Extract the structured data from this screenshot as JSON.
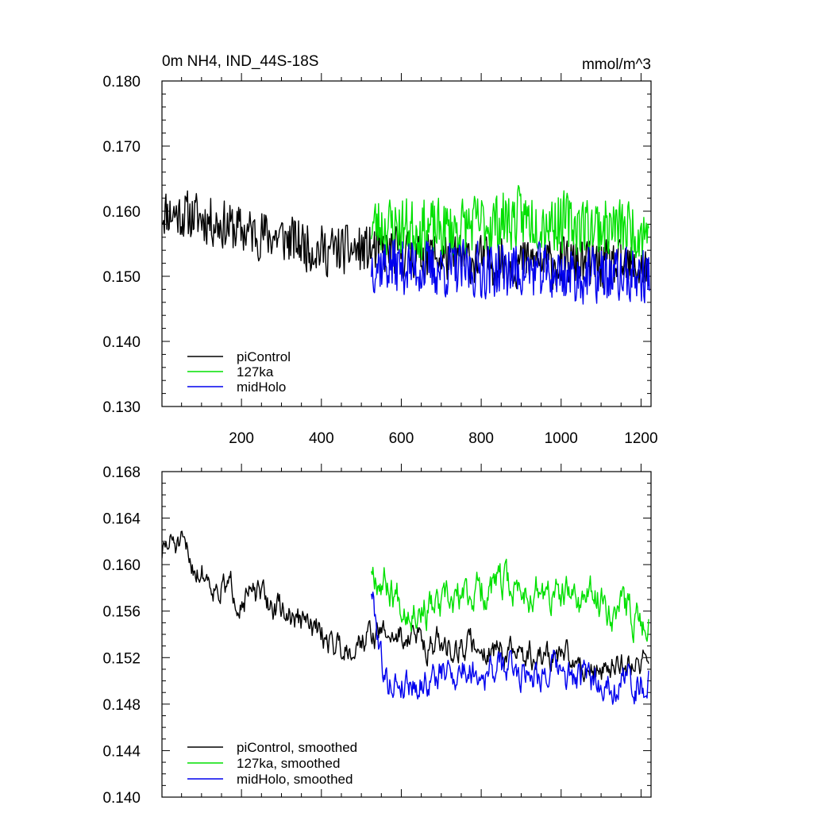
{
  "chart_data": [
    {
      "type": "line",
      "title_left": "0m NH4, IND_44S-18S",
      "title_right": "mmol/m^3",
      "xlim": [
        1,
        1225
      ],
      "ylim": [
        0.13,
        0.18
      ],
      "x_ticks": [
        200,
        400,
        600,
        800,
        1000,
        1200
      ],
      "x_tick_labels": [
        "200",
        "400",
        "600",
        "800",
        "1000",
        "1200"
      ],
      "y_ticks": [
        0.13,
        0.14,
        0.15,
        0.16,
        0.17,
        0.18
      ],
      "y_tick_labels": [
        "0.130",
        "0.140",
        "0.150",
        "0.160",
        "0.170",
        "0.180"
      ],
      "grid": false,
      "legend_position": "bottom-left",
      "series": [
        {
          "name": "piControl",
          "color": "#000000",
          "x_start": 1,
          "x_end": 1220,
          "knots": [
            [
              1,
              0.16
            ],
            [
              100,
              0.159
            ],
            [
              200,
              0.157
            ],
            [
              300,
              0.156
            ],
            [
              400,
              0.154
            ],
            [
              530,
              0.154
            ],
            [
              700,
              0.153
            ],
            [
              900,
              0.152
            ],
            [
              1050,
              0.152
            ],
            [
              1220,
              0.151
            ]
          ],
          "noise": 0.0037,
          "seed": 11
        },
        {
          "name": "127ka",
          "color": "#00e000",
          "x_start": 525,
          "x_end": 1220,
          "knots": [
            [
              525,
              0.158
            ],
            [
              700,
              0.157
            ],
            [
              900,
              0.159
            ],
            [
              1050,
              0.158
            ],
            [
              1220,
              0.157
            ]
          ],
          "noise": 0.0045,
          "seed": 23
        },
        {
          "name": "midHolo",
          "color": "#0000ee",
          "x_start": 525,
          "x_end": 1222,
          "knots": [
            [
              525,
              0.152
            ],
            [
              700,
              0.151
            ],
            [
              900,
              0.151
            ],
            [
              1050,
              0.15
            ],
            [
              1222,
              0.15
            ]
          ],
          "noise": 0.0042,
          "seed": 37
        }
      ]
    },
    {
      "type": "line",
      "xlim": [
        1,
        1225
      ],
      "ylim": [
        0.14,
        0.168
      ],
      "x_ticks": [
        200,
        400,
        600,
        800,
        1000,
        1200
      ],
      "y_ticks": [
        0.14,
        0.144,
        0.148,
        0.152,
        0.156,
        0.16,
        0.164,
        0.168
      ],
      "y_tick_labels": [
        "0.140",
        "0.144",
        "0.148",
        "0.152",
        "0.156",
        "0.160",
        "0.164",
        "0.168"
      ],
      "grid": false,
      "legend_position": "bottom-left",
      "series": [
        {
          "name": "piControl, smoothed",
          "color": "#000000",
          "x_start": 1,
          "x_end": 1220,
          "knots": [
            [
              1,
              0.161
            ],
            [
              30,
              0.162
            ],
            [
              80,
              0.16
            ],
            [
              150,
              0.158
            ],
            [
              250,
              0.157
            ],
            [
              350,
              0.155
            ],
            [
              450,
              0.153
            ],
            [
              530,
              0.154
            ],
            [
              600,
              0.154
            ],
            [
              700,
              0.153
            ],
            [
              800,
              0.153
            ],
            [
              900,
              0.152
            ],
            [
              1000,
              0.152
            ],
            [
              1100,
              0.151
            ],
            [
              1220,
              0.152
            ]
          ],
          "noise": 0.0017,
          "seed": 51
        },
        {
          "name": "127ka, smoothed",
          "color": "#00e000",
          "x_start": 525,
          "x_end": 1220,
          "knots": [
            [
              525,
              0.16
            ],
            [
              600,
              0.157
            ],
            [
              700,
              0.156
            ],
            [
              800,
              0.158
            ],
            [
              900,
              0.158
            ],
            [
              1000,
              0.157
            ],
            [
              1100,
              0.157
            ],
            [
              1220,
              0.155
            ]
          ],
          "noise": 0.0022,
          "seed": 67
        },
        {
          "name": "midHolo, smoothed",
          "color": "#0000ee",
          "x_start": 525,
          "x_end": 1220,
          "knots": [
            [
              525,
              0.158
            ],
            [
              560,
              0.15
            ],
            [
              650,
              0.15
            ],
            [
              750,
              0.151
            ],
            [
              850,
              0.151
            ],
            [
              950,
              0.151
            ],
            [
              1050,
              0.15
            ],
            [
              1150,
              0.15
            ],
            [
              1220,
              0.15
            ]
          ],
          "noise": 0.002,
          "seed": 79
        }
      ]
    }
  ]
}
